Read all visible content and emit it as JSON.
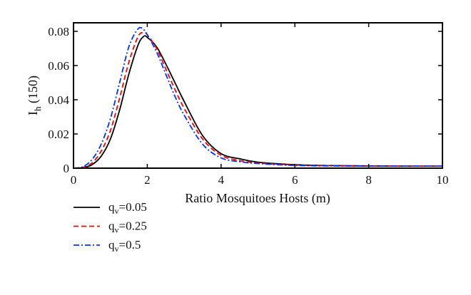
{
  "chart_data": {
    "type": "line",
    "title": "",
    "xlabel": "Ratio Mosquitoes Hosts (m)",
    "ylabel": {
      "main": "I",
      "sub": "h",
      "rest": " (150)"
    },
    "xlim": [
      0,
      10
    ],
    "ylim": [
      0,
      0.085
    ],
    "xticks": [
      0,
      2,
      4,
      6,
      8,
      10
    ],
    "yticks": [
      0,
      0.02,
      0.04,
      0.06,
      0.08
    ],
    "ytick_labels": [
      "0",
      "0.02",
      "0.04",
      "0.06",
      "0.08"
    ],
    "grid": false,
    "legend_placement": "below-left",
    "x": [
      0,
      0.25,
      0.5,
      0.75,
      1,
      1.25,
      1.5,
      1.75,
      1.9,
      2,
      2.25,
      2.5,
      2.75,
      3,
      3.5,
      4,
      4.5,
      5,
      6,
      7,
      8,
      9,
      10
    ],
    "series": [
      {
        "name": {
          "main": "q",
          "sub": "v",
          "rest": "=0.05"
        },
        "color": "#000000",
        "dash": "solid",
        "values": [
          0,
          0.0003,
          0.002,
          0.007,
          0.017,
          0.034,
          0.055,
          0.072,
          0.077,
          0.0765,
          0.071,
          0.061,
          0.05,
          0.039,
          0.019,
          0.0085,
          0.0055,
          0.0035,
          0.002,
          0.0015,
          0.0013,
          0.0012,
          0.0012
        ]
      },
      {
        "name": {
          "main": "q",
          "sub": "v",
          "rest": "=0.25"
        },
        "color": "#ff0000",
        "dash": "dashed",
        "values": [
          0,
          0.0005,
          0.003,
          0.01,
          0.022,
          0.041,
          0.062,
          0.077,
          0.0793,
          0.078,
          0.07,
          0.058,
          0.046,
          0.035,
          0.017,
          0.0075,
          0.0045,
          0.003,
          0.0018,
          0.0014,
          0.0012,
          0.0012,
          0.0012
        ]
      },
      {
        "name": {
          "main": "q",
          "sub": "v",
          "rest": "=0.5"
        },
        "color": "#0033ff",
        "dash": "dash-dot",
        "values": [
          0,
          0.0008,
          0.005,
          0.014,
          0.029,
          0.05,
          0.071,
          0.0815,
          0.081,
          0.078,
          0.068,
          0.055,
          0.042,
          0.031,
          0.014,
          0.006,
          0.0038,
          0.0027,
          0.0016,
          0.0013,
          0.0012,
          0.0012,
          0.0012
        ]
      }
    ]
  }
}
